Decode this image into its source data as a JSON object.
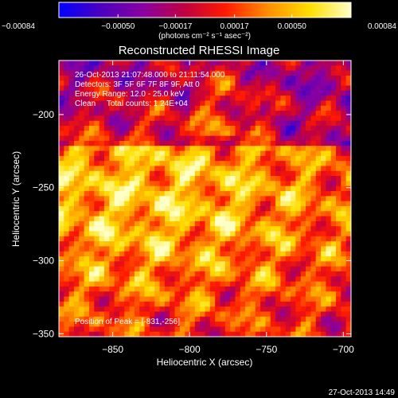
{
  "chart_data": {
    "type": "heatmap",
    "title": "Reconstructed RHESSI Image",
    "xlabel": "Heliocentric X (arcsec)",
    "ylabel": "Heliocentric Y (arcsec)",
    "xlim": [
      -885,
      -695
    ],
    "ylim": [
      -352,
      -163
    ],
    "x_ticks": [
      {
        "value": -850,
        "label": "−850"
      },
      {
        "value": -800,
        "label": "−800"
      },
      {
        "value": -750,
        "label": "−750"
      },
      {
        "value": -700,
        "label": "−700"
      }
    ],
    "y_ticks": [
      {
        "value": -200,
        "label": "−200"
      },
      {
        "value": -250,
        "label": "−250"
      },
      {
        "value": -300,
        "label": "−300"
      },
      {
        "value": -350,
        "label": "−350"
      }
    ],
    "colorbar": {
      "range": [
        -0.00084,
        0.00084
      ],
      "ticks": [
        {
          "value": -0.00084,
          "label": "−0.00084"
        },
        {
          "value": -0.0005,
          "label": "−0.00050"
        },
        {
          "value": -0.00017,
          "label": "−0.00017"
        },
        {
          "value": 0.00017,
          "label": "0.00017"
        },
        {
          "value": 0.0005,
          "label": "0.00050"
        },
        {
          "value": 0.00084,
          "label": "0.00084"
        }
      ],
      "unit_label": "(photons cm⁻² s⁻¹ asec⁻²)",
      "colormap": [
        "#0000ff",
        "#4a00c0",
        "#8a00a0",
        "#c00040",
        "#ff1a00",
        "#ff8a00",
        "#ffe000",
        "#ffffc8"
      ]
    },
    "annotations": {
      "time_range": "26-Oct-2013 21:07:48.000 to 21:11:54.000",
      "detectors": "Detectors: 3F 5F 6F 7F 8F 9F, Att 0",
      "energy_range": "Energy Range: 12.0 - 25.0 keV",
      "method_counts": "Clean     Total counts: 1.24E+04",
      "peak_position": "Position of Peak = [-831,-256]"
    },
    "peak": [
      -831,
      -256
    ],
    "grid": false
  },
  "footer": {
    "timestamp": "27-Oct-2013 14:49"
  }
}
